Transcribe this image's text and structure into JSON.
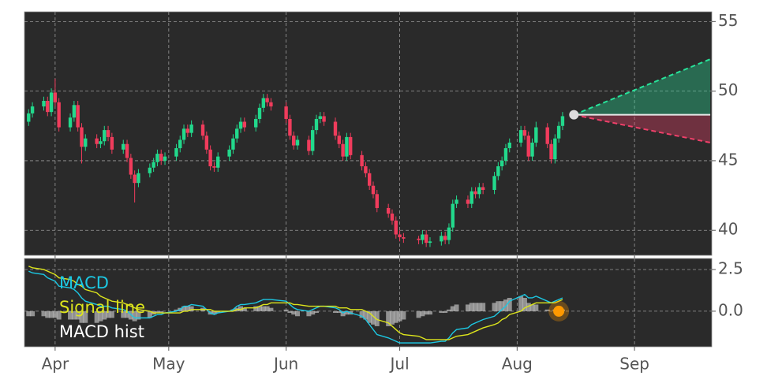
{
  "chart_data": [
    {
      "type": "candlestick",
      "x": [
        -7,
        -6,
        -3,
        -2,
        -1,
        0,
        1,
        4,
        5,
        6,
        7,
        8,
        11,
        12,
        13,
        14,
        15,
        18,
        19,
        20,
        21,
        22,
        25,
        26,
        27,
        28,
        29,
        32,
        33,
        34,
        35,
        36,
        39,
        40,
        41,
        42,
        43,
        46,
        47,
        48,
        49,
        50,
        53,
        54,
        55,
        56,
        57,
        61,
        62,
        63,
        64,
        67,
        68,
        69,
        70,
        71,
        74,
        75,
        76,
        77,
        78,
        81,
        82,
        83,
        84,
        85,
        88,
        89,
        90,
        91,
        92,
        96,
        97,
        98,
        99,
        102,
        103,
        104,
        105,
        106,
        109,
        110,
        111,
        112,
        113,
        116,
        117,
        118,
        119,
        120,
        123,
        124,
        125,
        126,
        127,
        130,
        131,
        132,
        133,
        134
      ],
      "open": [
        47.8,
        48.4,
        48.9,
        49.3,
        48.5,
        49.9,
        49.2,
        47.4,
        48.1,
        49.0,
        47.4,
        46.0,
        46.6,
        46.2,
        46.4,
        47.2,
        46.7,
        45.8,
        46.2,
        45.2,
        44.0,
        43.4,
        44.1,
        44.5,
        44.9,
        45.5,
        45.0,
        45.3,
        45.9,
        46.5,
        47.3,
        47.0,
        47.6,
        46.8,
        45.8,
        44.6,
        44.5,
        45.3,
        45.8,
        46.6,
        47.3,
        47.8,
        47.4,
        48.0,
        48.8,
        49.5,
        49.2,
        48.9,
        48.0,
        46.8,
        46.1,
        46.5,
        45.7,
        47.2,
        48.0,
        48.2,
        47.8,
        46.8,
        46.2,
        45.3,
        46.7,
        45.4,
        44.6,
        44.1,
        43.2,
        42.6,
        41.6,
        41.2,
        40.7,
        39.7,
        39.5,
        39.4,
        39.3,
        39.7,
        39.1,
        39.2,
        39.6,
        39.3,
        40.2,
        41.9,
        42.2,
        41.9,
        42.8,
        42.6,
        43.1,
        42.9,
        43.9,
        44.6,
        45.0,
        45.9,
        46.3,
        47.2,
        46.8,
        45.3,
        46.3,
        47.4,
        46.2,
        45.1,
        46.6,
        47.5
      ],
      "high": [
        48.7,
        49.2,
        49.6,
        49.6,
        50.2,
        50.9,
        49.5,
        48.4,
        49.3,
        49.3,
        47.7,
        46.9,
        46.9,
        46.7,
        47.5,
        47.5,
        47.0,
        46.5,
        46.5,
        45.5,
        44.3,
        44.4,
        44.8,
        45.2,
        45.8,
        45.8,
        45.6,
        46.2,
        46.8,
        47.6,
        47.6,
        47.9,
        47.9,
        47.1,
        46.1,
        44.9,
        45.6,
        46.1,
        46.9,
        47.6,
        48.1,
        48.1,
        48.3,
        49.1,
        49.8,
        49.8,
        49.5,
        49.2,
        48.3,
        47.1,
        46.8,
        46.8,
        47.5,
        48.3,
        48.5,
        48.5,
        48.1,
        47.1,
        46.5,
        47.0,
        47.0,
        45.7,
        44.9,
        44.4,
        43.5,
        42.9,
        41.9,
        41.5,
        41.0,
        40.0,
        39.8,
        39.6,
        40.0,
        40.0,
        39.5,
        39.9,
        39.9,
        40.5,
        42.2,
        42.5,
        42.5,
        43.1,
        43.1,
        43.4,
        43.4,
        44.2,
        44.9,
        45.3,
        46.2,
        46.6,
        47.5,
        47.5,
        47.1,
        46.6,
        47.8,
        47.7,
        46.5,
        46.9,
        47.8,
        48.5
      ],
      "low": [
        47.5,
        48.1,
        48.6,
        48.2,
        48.2,
        48.9,
        47.1,
        47.1,
        47.8,
        47.1,
        44.8,
        45.7,
        45.9,
        45.9,
        46.1,
        46.4,
        45.5,
        45.5,
        44.9,
        43.7,
        42.0,
        43.1,
        43.8,
        44.2,
        44.6,
        44.7,
        44.7,
        45.0,
        45.6,
        46.2,
        46.7,
        46.7,
        46.5,
        45.5,
        44.3,
        44.2,
        44.2,
        45.0,
        45.5,
        46.3,
        47.0,
        47.1,
        47.1,
        47.7,
        48.5,
        48.9,
        48.6,
        47.7,
        46.5,
        45.8,
        45.8,
        45.4,
        45.4,
        46.9,
        47.7,
        47.5,
        46.5,
        45.9,
        45.0,
        45.0,
        45.1,
        44.3,
        43.8,
        42.9,
        42.3,
        41.3,
        40.9,
        40.4,
        39.4,
        39.2,
        39.1,
        39.0,
        39.0,
        38.8,
        38.8,
        38.9,
        39.0,
        39.0,
        39.9,
        41.6,
        41.6,
        41.6,
        42.3,
        42.3,
        42.6,
        42.6,
        43.6,
        44.3,
        44.7,
        45.6,
        46.0,
        46.5,
        45.0,
        45.0,
        46.0,
        45.9,
        44.8,
        44.8,
        46.3,
        47.2
      ],
      "close": [
        48.4,
        48.9,
        49.3,
        48.5,
        49.9,
        49.2,
        47.4,
        48.1,
        49.0,
        47.4,
        46.0,
        46.6,
        46.2,
        46.4,
        47.2,
        46.7,
        45.8,
        46.2,
        45.2,
        44.0,
        43.4,
        44.1,
        44.5,
        44.9,
        45.5,
        45.0,
        45.3,
        45.9,
        46.5,
        47.3,
        47.0,
        47.6,
        46.8,
        45.8,
        44.6,
        44.5,
        45.3,
        45.8,
        46.6,
        47.3,
        47.8,
        47.4,
        48.0,
        48.8,
        49.5,
        49.2,
        48.9,
        48.0,
        46.8,
        46.1,
        46.5,
        45.7,
        47.2,
        48.0,
        48.2,
        47.8,
        46.8,
        46.2,
        45.3,
        46.7,
        45.4,
        44.6,
        44.1,
        43.2,
        42.6,
        41.6,
        41.2,
        40.7,
        39.7,
        39.5,
        39.4,
        39.3,
        39.7,
        39.1,
        39.2,
        39.6,
        39.3,
        40.2,
        41.9,
        42.2,
        41.9,
        42.8,
        42.6,
        43.1,
        42.9,
        43.9,
        44.6,
        45.0,
        45.9,
        46.3,
        47.2,
        46.8,
        45.3,
        46.3,
        47.4,
        46.2,
        45.1,
        46.6,
        47.5,
        48.2
      ],
      "up_color": "#22d98c",
      "down_color": "#f03c5c",
      "forecast": {
        "x": [
          137,
          173
        ],
        "start": 48.3,
        "upper": 52.3,
        "lower": 46.3,
        "upper_color": "#27e39a",
        "lower_color": "#f0406a"
      },
      "xlim": [
        -8.1,
        173.4
      ],
      "xticks": [
        0,
        30,
        61,
        91,
        122,
        153
      ],
      "ylim": [
        38.2,
        55.7
      ],
      "yticks": [
        40,
        45,
        50,
        55
      ],
      "grid": true
    },
    {
      "type": "line",
      "x": [
        -7,
        -6,
        -3,
        -2,
        -1,
        0,
        1,
        4,
        5,
        6,
        7,
        8,
        11,
        12,
        13,
        14,
        15,
        18,
        19,
        20,
        21,
        22,
        25,
        26,
        27,
        28,
        29,
        32,
        33,
        34,
        35,
        36,
        39,
        40,
        41,
        42,
        43,
        46,
        47,
        48,
        49,
        50,
        53,
        54,
        55,
        56,
        57,
        61,
        62,
        63,
        64,
        67,
        68,
        69,
        70,
        71,
        74,
        75,
        76,
        77,
        78,
        81,
        82,
        83,
        84,
        85,
        88,
        89,
        90,
        91,
        92,
        96,
        97,
        98,
        99,
        102,
        103,
        104,
        105,
        106,
        109,
        110,
        111,
        112,
        113,
        116,
        117,
        118,
        119,
        120,
        123,
        124,
        125,
        126,
        127,
        130,
        131,
        132,
        133,
        134
      ],
      "series": [
        {
          "name": "MACD",
          "color": "#1cc8e3",
          "values": [
            2.4,
            2.3,
            2.2,
            2.0,
            1.9,
            1.8,
            1.5,
            1.4,
            1.3,
            1.1,
            0.8,
            0.6,
            0.4,
            0.3,
            0.3,
            0.3,
            0.2,
            0.1,
            0.0,
            -0.2,
            -0.4,
            -0.4,
            -0.4,
            -0.3,
            -0.2,
            -0.2,
            -0.1,
            0.0,
            0.1,
            0.3,
            0.3,
            0.4,
            0.3,
            0.1,
            -0.1,
            -0.2,
            -0.1,
            0.0,
            0.1,
            0.3,
            0.4,
            0.4,
            0.5,
            0.6,
            0.7,
            0.7,
            0.7,
            0.6,
            0.4,
            0.2,
            0.1,
            0.0,
            0.1,
            0.2,
            0.3,
            0.3,
            0.2,
            0.1,
            -0.1,
            0.0,
            -0.1,
            -0.3,
            -0.5,
            -0.8,
            -1.1,
            -1.4,
            -1.6,
            -1.7,
            -1.8,
            -1.9,
            -1.9,
            -1.9,
            -1.9,
            -1.9,
            -1.9,
            -1.8,
            -1.8,
            -1.6,
            -1.3,
            -1.1,
            -1.0,
            -0.8,
            -0.7,
            -0.6,
            -0.5,
            -0.3,
            -0.1,
            0.1,
            0.3,
            0.6,
            0.9,
            1.0,
            0.8,
            0.8,
            0.9,
            0.6,
            0.5,
            0.6,
            0.7,
            0.8
          ]
        },
        {
          "name": "Signal line",
          "color": "#dde51c",
          "values": [
            2.7,
            2.6,
            2.5,
            2.4,
            2.3,
            2.2,
            2.0,
            1.9,
            1.8,
            1.6,
            1.5,
            1.3,
            1.1,
            0.9,
            0.8,
            0.7,
            0.6,
            0.5,
            0.4,
            0.3,
            0.2,
            0.1,
            0.0,
            -0.1,
            -0.1,
            -0.1,
            -0.1,
            -0.1,
            -0.1,
            0.0,
            0.0,
            0.1,
            0.1,
            0.1,
            0.1,
            0.0,
            0.0,
            0.0,
            0.0,
            0.1,
            0.1,
            0.2,
            0.2,
            0.3,
            0.4,
            0.4,
            0.5,
            0.5,
            0.5,
            0.4,
            0.4,
            0.3,
            0.3,
            0.3,
            0.3,
            0.3,
            0.3,
            0.2,
            0.2,
            0.2,
            0.1,
            0.1,
            0.0,
            -0.1,
            -0.3,
            -0.5,
            -0.7,
            -0.9,
            -1.1,
            -1.3,
            -1.4,
            -1.5,
            -1.6,
            -1.7,
            -1.7,
            -1.7,
            -1.7,
            -1.7,
            -1.6,
            -1.5,
            -1.4,
            -1.3,
            -1.2,
            -1.1,
            -1.0,
            -0.8,
            -0.7,
            -0.5,
            -0.4,
            -0.2,
            0.0,
            0.2,
            0.3,
            0.4,
            0.5,
            0.5,
            0.5,
            0.5,
            0.6,
            0.7
          ]
        },
        {
          "name": "MACD hist",
          "type": "bar",
          "color": "#b4b4b4",
          "values": [
            -0.3,
            -0.3,
            -0.3,
            -0.4,
            -0.4,
            -0.4,
            -0.5,
            -0.5,
            -0.5,
            -0.5,
            -0.7,
            -0.7,
            -0.7,
            -0.6,
            -0.5,
            -0.4,
            -0.4,
            -0.4,
            -0.4,
            -0.5,
            -0.6,
            -0.5,
            -0.4,
            -0.2,
            -0.1,
            -0.1,
            0.0,
            0.1,
            0.2,
            0.3,
            0.3,
            0.3,
            0.2,
            0.0,
            -0.2,
            -0.2,
            -0.1,
            0.0,
            0.1,
            0.2,
            0.3,
            0.2,
            0.3,
            0.3,
            0.3,
            0.3,
            0.2,
            0.1,
            -0.1,
            -0.2,
            -0.3,
            -0.3,
            -0.2,
            -0.1,
            0.0,
            0.0,
            -0.1,
            -0.1,
            -0.3,
            -0.2,
            -0.2,
            -0.4,
            -0.5,
            -0.7,
            -0.8,
            -0.9,
            -0.9,
            -0.8,
            -0.7,
            -0.6,
            -0.5,
            -0.4,
            -0.3,
            -0.2,
            -0.2,
            -0.1,
            -0.1,
            0.1,
            0.3,
            0.4,
            0.4,
            0.5,
            0.5,
            0.5,
            0.5,
            0.5,
            0.6,
            0.6,
            0.7,
            0.8,
            0.9,
            0.8,
            0.5,
            0.4,
            0.4,
            0.1,
            0.0,
            0.1,
            0.1,
            0.1
          ]
        }
      ],
      "marker": {
        "x": 133,
        "y": 0,
        "color": "#ff9900"
      },
      "xlim": [
        -8.1,
        173.4
      ],
      "xticks": [
        {
          "value": 0,
          "label": "Apr"
        },
        {
          "value": 30,
          "label": "May"
        },
        {
          "value": 61,
          "label": "Jun"
        },
        {
          "value": 91,
          "label": "Jul"
        },
        {
          "value": 122,
          "label": "Aug"
        },
        {
          "value": 153,
          "label": "Sep"
        }
      ],
      "ylim": [
        -2.13,
        3.16
      ],
      "yticks": [
        2.5,
        {
          "value": 0,
          "label": "0.0"
        }
      ],
      "grid": true,
      "legend": "upper left"
    }
  ]
}
